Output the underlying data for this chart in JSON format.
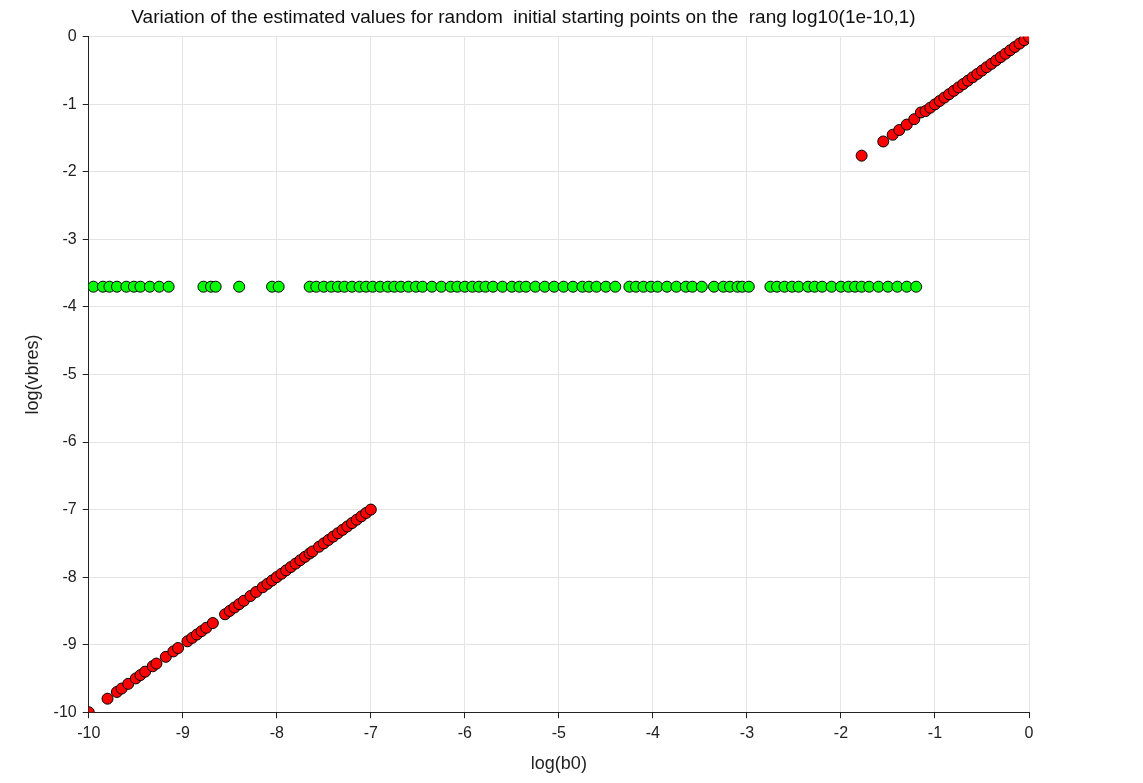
{
  "chart_data": {
    "type": "scatter",
    "title": "Variation of the estimated values for random  initial starting points on the  rang log10(1e-10,1)",
    "xlabel": "log(b0)",
    "ylabel": "log(vbres)",
    "xlim": [
      -10,
      0
    ],
    "xticks": [
      -10,
      -9,
      -8,
      -7,
      -6,
      -5,
      -4,
      -3,
      -2,
      -1,
      0
    ],
    "ylim": [
      -10,
      0
    ],
    "yticks": [
      -10,
      -9,
      -8,
      -7,
      -6,
      -5,
      -4,
      -3,
      -2,
      -1,
      0
    ],
    "grid": true,
    "legend": false,
    "marker": "circle",
    "series": [
      {
        "color": "#00ff00",
        "x": [
          -9.95,
          -9.85,
          -9.78,
          -9.7,
          -9.6,
          -9.52,
          -9.45,
          -9.35,
          -9.25,
          -9.15,
          -8.78,
          -8.7,
          -8.65,
          -8.4,
          -8.05,
          -7.98,
          -7.65,
          -7.58,
          -7.5,
          -7.42,
          -7.35,
          -7.28,
          -7.2,
          -7.12,
          -7.05,
          -6.98,
          -6.9,
          -6.82,
          -6.75,
          -6.68,
          -6.6,
          -6.52,
          -6.45,
          -6.35,
          -6.25,
          -6.15,
          -6.08,
          -6,
          -5.92,
          -5.85,
          -5.78,
          -5.7,
          -5.6,
          -5.5,
          -5.42,
          -5.35,
          -5.25,
          -5.15,
          -5.05,
          -4.95,
          -4.85,
          -4.75,
          -4.68,
          -4.6,
          -4.5,
          -4.4,
          -4.25,
          -4.18,
          -4.1,
          -4.02,
          -3.95,
          -3.85,
          -3.75,
          -3.65,
          -3.58,
          -3.48,
          -3.35,
          -3.25,
          -3.18,
          -3.1,
          -3.05,
          -2.98,
          -2.75,
          -2.68,
          -2.6,
          -2.52,
          -2.45,
          -2.35,
          -2.28,
          -2.2,
          -2.1,
          -2,
          -1.92,
          -1.85,
          -1.78,
          -1.7,
          -1.6,
          -1.5,
          -1.4,
          -1.3,
          -1.2
        ],
        "values": [
          -3.7,
          -3.7,
          -3.7,
          -3.7,
          -3.7,
          -3.7,
          -3.7,
          -3.7,
          -3.7,
          -3.7,
          -3.7,
          -3.7,
          -3.7,
          -3.7,
          -3.7,
          -3.7,
          -3.7,
          -3.7,
          -3.7,
          -3.7,
          -3.7,
          -3.7,
          -3.7,
          -3.7,
          -3.7,
          -3.7,
          -3.7,
          -3.7,
          -3.7,
          -3.7,
          -3.7,
          -3.7,
          -3.7,
          -3.7,
          -3.7,
          -3.7,
          -3.7,
          -3.7,
          -3.7,
          -3.7,
          -3.7,
          -3.7,
          -3.7,
          -3.7,
          -3.7,
          -3.7,
          -3.7,
          -3.7,
          -3.7,
          -3.7,
          -3.7,
          -3.7,
          -3.7,
          -3.7,
          -3.7,
          -3.7,
          -3.7,
          -3.7,
          -3.7,
          -3.7,
          -3.7,
          -3.7,
          -3.7,
          -3.7,
          -3.7,
          -3.7,
          -3.7,
          -3.7,
          -3.7,
          -3.7,
          -3.7,
          -3.7,
          -3.7,
          -3.7,
          -3.7,
          -3.7,
          -3.7,
          -3.7,
          -3.7,
          -3.7,
          -3.7,
          -3.7,
          -3.7,
          -3.7,
          -3.7,
          -3.7,
          -3.7,
          -3.7,
          -3.7,
          -3.7,
          -3.7
        ]
      },
      {
        "color": "#ff0000",
        "x": [
          -10,
          -9.8,
          -9.7,
          -9.65,
          -9.58,
          -9.5,
          -9.45,
          -9.4,
          -9.32,
          -9.28,
          -9.18,
          -9.1,
          -9.05,
          -8.95,
          -8.9,
          -8.85,
          -8.8,
          -8.75,
          -8.68,
          -8.55,
          -8.5,
          -8.45,
          -8.4,
          -8.35,
          -8.28,
          -8.22,
          -8.15,
          -8.1,
          -8.05,
          -8,
          -7.95,
          -7.9,
          -7.85,
          -7.8,
          -7.75,
          -7.7,
          -7.65,
          -7.62,
          -7.55,
          -7.5,
          -7.45,
          -7.4,
          -7.35,
          -7.3,
          -7.25,
          -7.2,
          -7.15,
          -7.1,
          -7.05,
          -7,
          -1.78,
          -1.55,
          -1.45,
          -1.38,
          -1.3,
          -1.22,
          -1.15,
          -1.1,
          -1.05,
          -1,
          -0.95,
          -0.9,
          -0.85,
          -0.8,
          -0.75,
          -0.7,
          -0.65,
          -0.6,
          -0.55,
          -0.5,
          -0.45,
          -0.4,
          -0.35,
          -0.3,
          -0.25,
          -0.2,
          -0.15,
          -0.1,
          -0.05,
          0
        ],
        "values": [
          -10,
          -9.8,
          -9.7,
          -9.65,
          -9.58,
          -9.5,
          -9.45,
          -9.4,
          -9.32,
          -9.28,
          -9.18,
          -9.1,
          -9.05,
          -8.95,
          -8.9,
          -8.85,
          -8.8,
          -8.75,
          -8.68,
          -8.55,
          -8.5,
          -8.45,
          -8.4,
          -8.35,
          -8.28,
          -8.22,
          -8.15,
          -8.1,
          -8.05,
          -8,
          -7.95,
          -7.9,
          -7.85,
          -7.8,
          -7.75,
          -7.7,
          -7.65,
          -7.62,
          -7.55,
          -7.5,
          -7.45,
          -7.4,
          -7.35,
          -7.3,
          -7.25,
          -7.2,
          -7.15,
          -7.1,
          -7.05,
          -7,
          -1.76,
          -1.55,
          -1.45,
          -1.38,
          -1.3,
          -1.22,
          -1.12,
          -1.1,
          -1.05,
          -1,
          -0.95,
          -0.9,
          -0.85,
          -0.8,
          -0.75,
          -0.7,
          -0.65,
          -0.6,
          -0.55,
          -0.5,
          -0.45,
          -0.4,
          -0.35,
          -0.3,
          -0.25,
          -0.2,
          -0.15,
          -0.1,
          -0.05,
          0
        ]
      }
    ]
  }
}
